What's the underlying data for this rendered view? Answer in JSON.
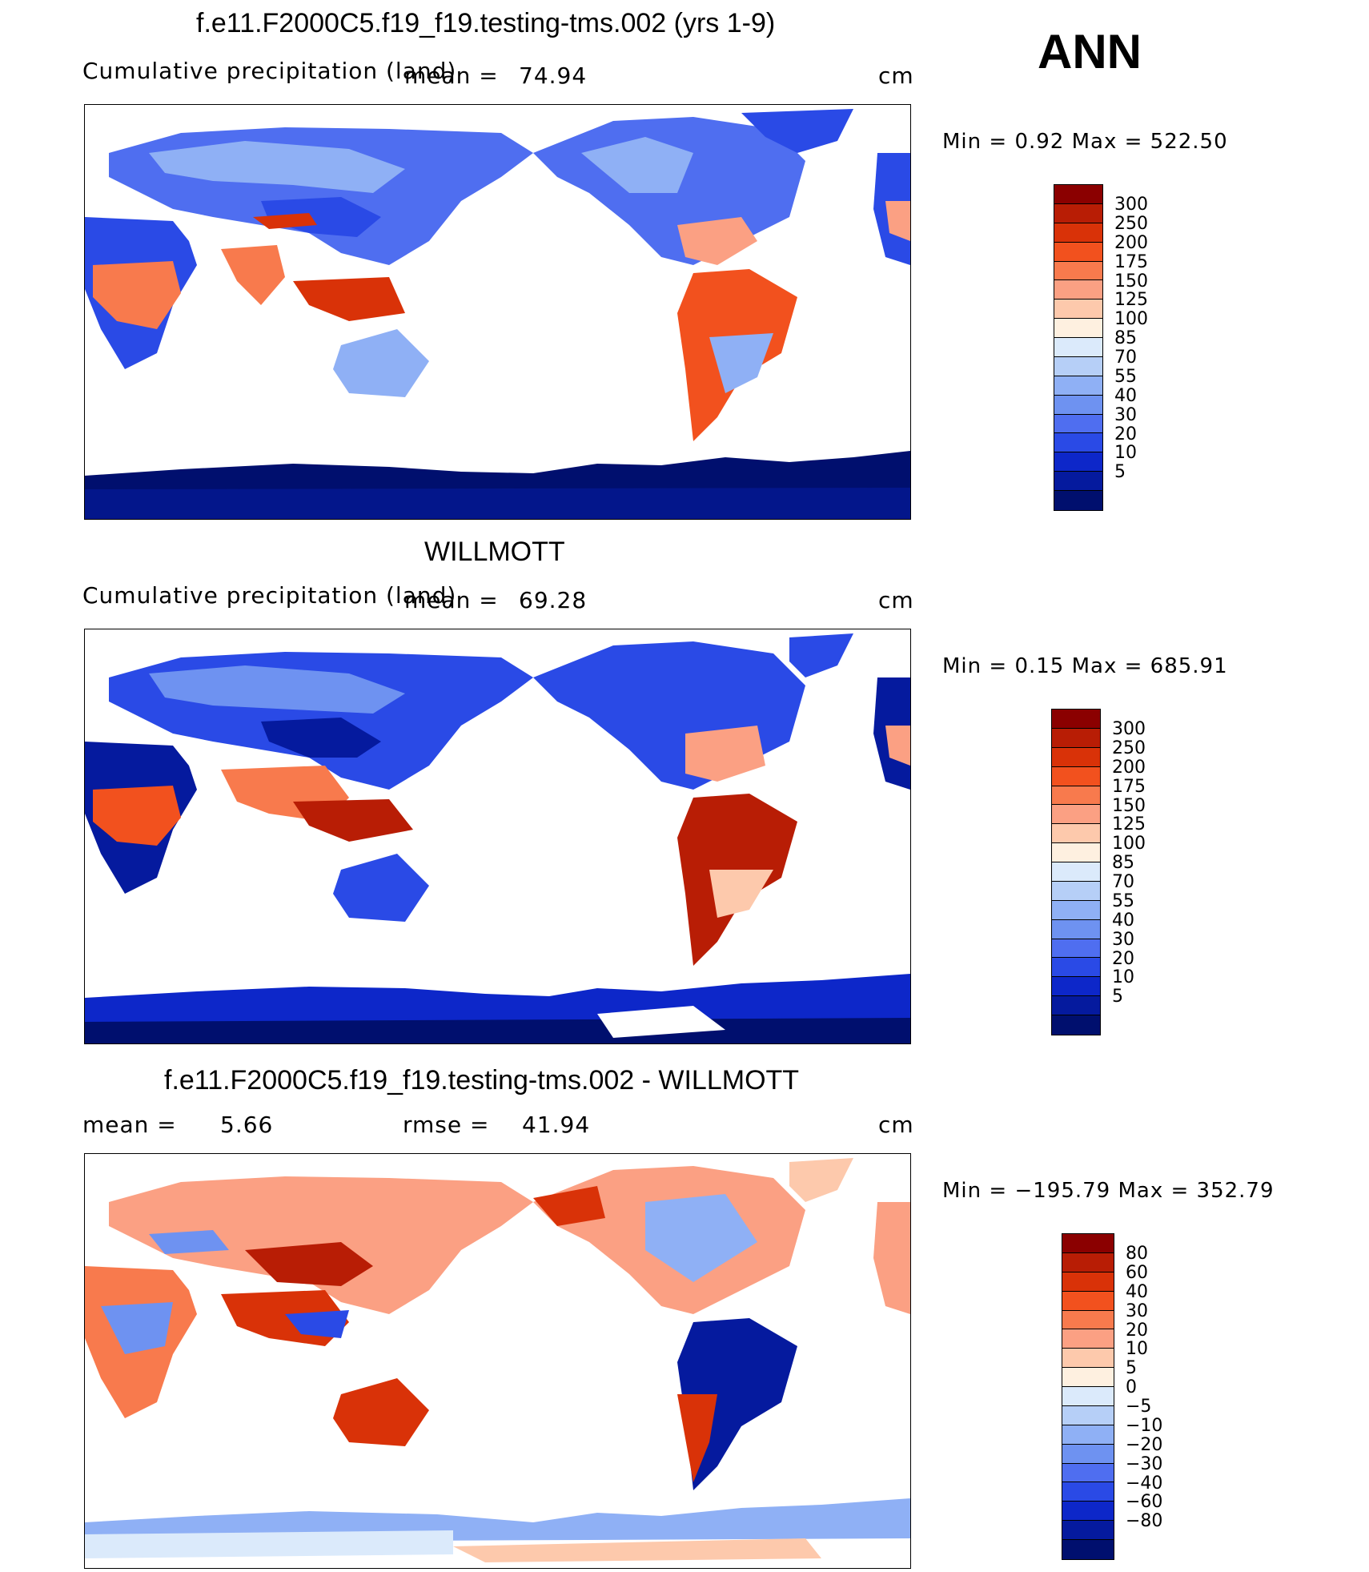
{
  "ann_label": "ANN",
  "panels": [
    {
      "title": "f.e11.F2000C5.f19_f19.testing-tms.002 (yrs 1-9)",
      "left_label": "Cumulative precipitation (land)",
      "mean_label": "mean =",
      "mean_value": "74.94",
      "units": "cm",
      "minmax": "Min =     0.92  Max  =  522.50"
    },
    {
      "title": "WILLMOTT",
      "left_label": "Cumulative precipitation (land)",
      "mean_label": "mean =",
      "mean_value": "69.28",
      "units": "cm",
      "minmax": "Min =     0.15  Max  =  685.91"
    },
    {
      "title": "f.e11.F2000C5.f19_f19.testing-tms.002 - WILLMOTT",
      "mean_label": "mean =",
      "mean_value": "5.66",
      "rmse_label": "rmse =",
      "rmse_value": "41.94",
      "units": "cm",
      "minmax": "Min = −195.79  Max  =  352.79"
    }
  ],
  "chart_data": [
    {
      "type": "heatmap",
      "title": "f.e11.F2000C5.f19_f19.testing-tms.002 (yrs 1-9)",
      "variable": "Cumulative precipitation (land)",
      "units": "cm",
      "mean": 74.94,
      "min": 0.92,
      "max": 522.5,
      "colorbar_levels": [
        "300",
        "250",
        "200",
        "175",
        "150",
        "125",
        "100",
        "85",
        "70",
        "55",
        "40",
        "30",
        "20",
        "10",
        "5"
      ],
      "colorbar_colors": [
        "#8b0000",
        "#b81d05",
        "#d93208",
        "#f2511e",
        "#f87a4d",
        "#fba083",
        "#fdc9ac",
        "#fef0e0",
        "#dbeafb",
        "#b6cff7",
        "#8fb0f5",
        "#6e92f1",
        "#4f6ef0",
        "#2a4ae6",
        "#0d27c9",
        "#051a9e",
        "#000f6e"
      ]
    },
    {
      "type": "heatmap",
      "title": "WILLMOTT",
      "variable": "Cumulative precipitation (land)",
      "units": "cm",
      "mean": 69.28,
      "min": 0.15,
      "max": 685.91,
      "colorbar_levels": [
        "300",
        "250",
        "200",
        "175",
        "150",
        "125",
        "100",
        "85",
        "70",
        "55",
        "40",
        "30",
        "20",
        "10",
        "5"
      ],
      "colorbar_colors": [
        "#8b0000",
        "#b81d05",
        "#d93208",
        "#f2511e",
        "#f87a4d",
        "#fba083",
        "#fdc9ac",
        "#fef0e0",
        "#dbeafb",
        "#b6cff7",
        "#8fb0f5",
        "#6e92f1",
        "#4f6ef0",
        "#2a4ae6",
        "#0d27c9",
        "#051a9e",
        "#000f6e"
      ]
    },
    {
      "type": "heatmap",
      "title": "f.e11.F2000C5.f19_f19.testing-tms.002 - WILLMOTT",
      "units": "cm",
      "mean": 5.66,
      "rmse": 41.94,
      "min": -195.79,
      "max": 352.79,
      "colorbar_levels": [
        "80",
        "60",
        "40",
        "30",
        "20",
        "10",
        "5",
        "0",
        "−5",
        "−10",
        "−20",
        "−30",
        "−40",
        "−60",
        "−80"
      ],
      "colorbar_colors": [
        "#8b0000",
        "#b81d05",
        "#d93208",
        "#f2511e",
        "#f87a4d",
        "#fba083",
        "#fdc9ac",
        "#fef0e0",
        "#dbeafb",
        "#b6cff7",
        "#8fb0f5",
        "#6e92f1",
        "#4f6ef0",
        "#2a4ae6",
        "#0d27c9",
        "#051a9e",
        "#000f6e"
      ]
    }
  ]
}
